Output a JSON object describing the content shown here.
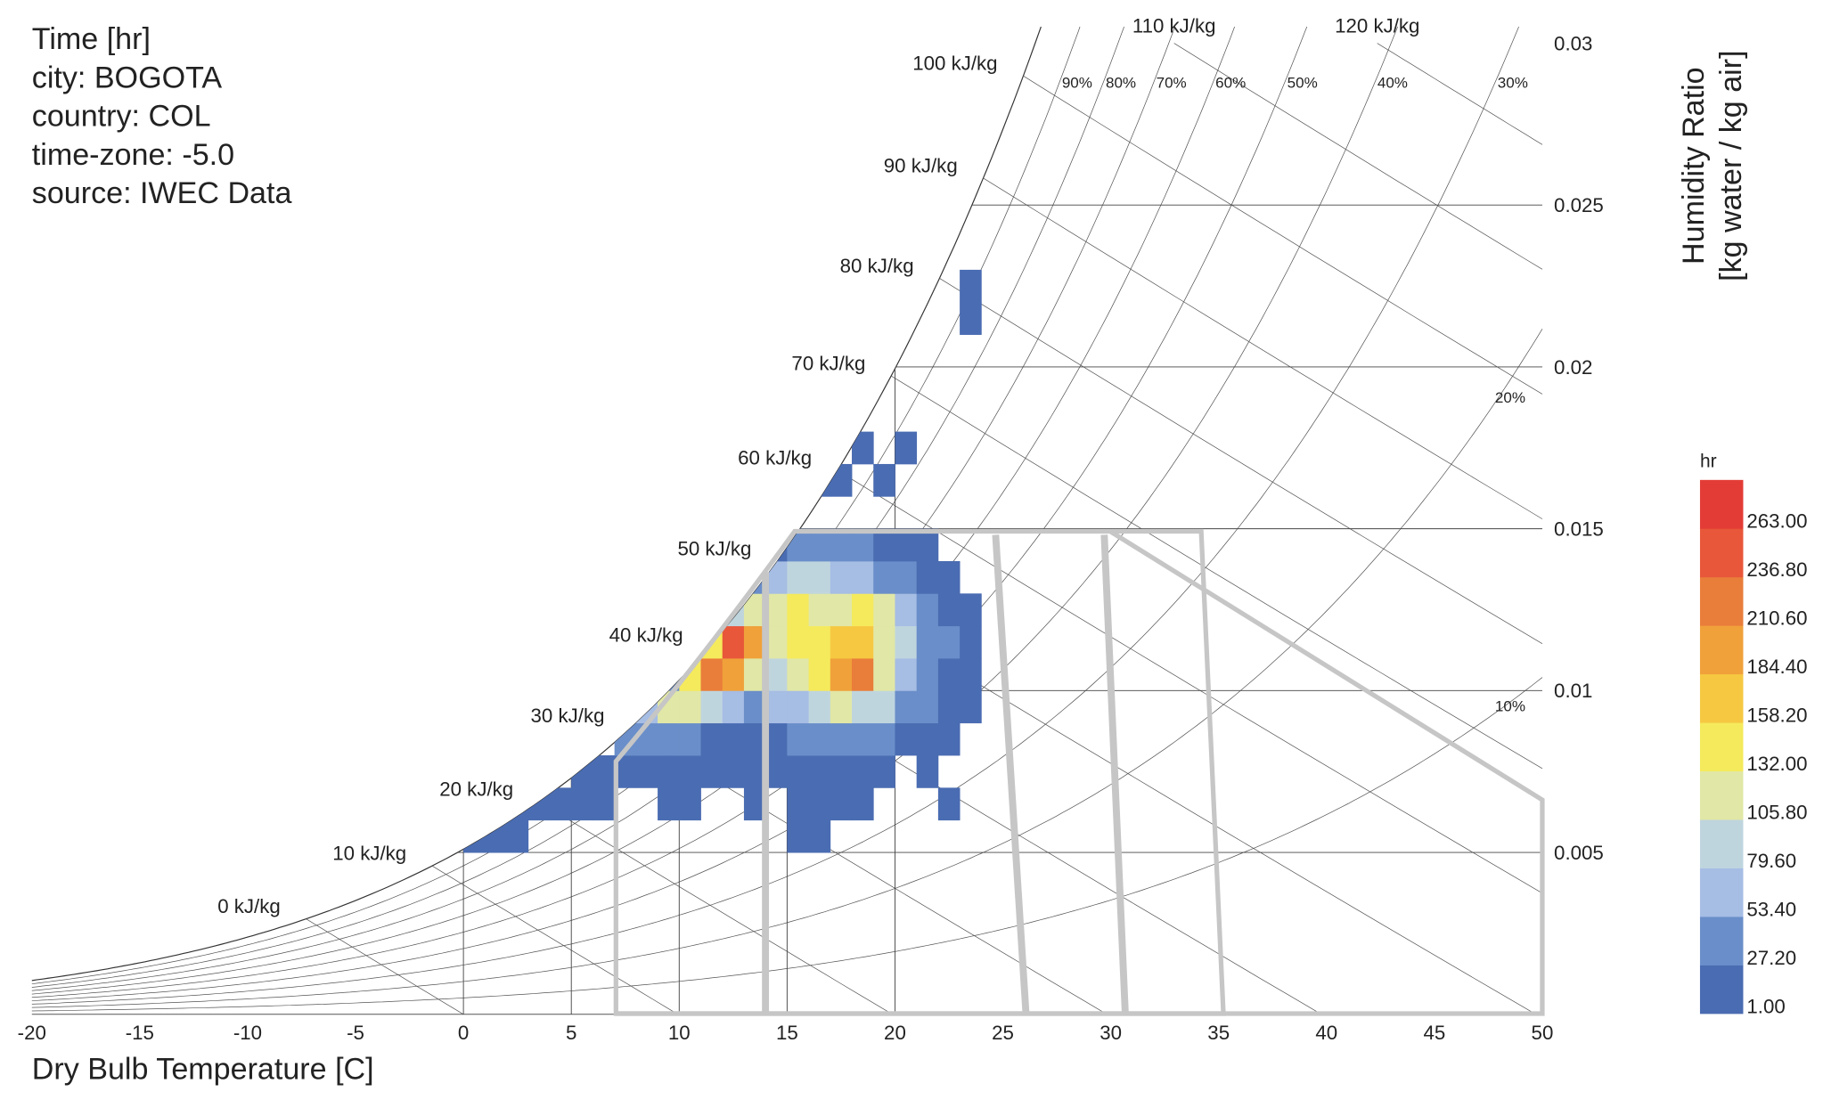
{
  "chart_data": {
    "type": "psychrometric",
    "info_lines": [
      "Time [hr]",
      "city: BOGOTA",
      "country: COL",
      "time-zone: -5.0",
      "source: IWEC Data"
    ],
    "x_label": "Dry Bulb Temperature [C]",
    "y_label": [
      "Humidity Ratio",
      "[kg water / kg air]"
    ],
    "xlim": [
      -20,
      50
    ],
    "xticks": [
      -20,
      -15,
      -10,
      -5,
      0,
      5,
      10,
      15,
      20,
      25,
      30,
      35,
      40,
      45,
      50
    ],
    "ylim": [
      0,
      0.03
    ],
    "yticks": [
      0.005,
      0.01,
      0.015,
      0.02,
      0.025,
      0.03
    ],
    "enthalpy_lines": [
      {
        "value": 0,
        "label": "0 kJ/kg"
      },
      {
        "value": 10,
        "label": "10 kJ/kg"
      },
      {
        "value": 20,
        "label": "20 kJ/kg"
      },
      {
        "value": 30,
        "label": "30 kJ/kg"
      },
      {
        "value": 40,
        "label": "40 kJ/kg"
      },
      {
        "value": 50,
        "label": "50 kJ/kg"
      },
      {
        "value": 60,
        "label": "60 kJ/kg"
      },
      {
        "value": 70,
        "label": "70 kJ/kg"
      },
      {
        "value": 80,
        "label": "80 kJ/kg"
      },
      {
        "value": 90,
        "label": "90 kJ/kg"
      },
      {
        "value": 100,
        "label": "100 kJ/kg"
      },
      {
        "value": 110,
        "label": "110 kJ/kg"
      },
      {
        "value": 120,
        "label": "120 kJ/kg"
      }
    ],
    "rh_lines": [
      {
        "value": 10,
        "label": "10%"
      },
      {
        "value": 20,
        "label": "20%"
      },
      {
        "value": 30,
        "label": "30%"
      },
      {
        "value": 40,
        "label": "40%"
      },
      {
        "value": 50,
        "label": "50%"
      },
      {
        "value": 60,
        "label": "60%"
      },
      {
        "value": 70,
        "label": "70%"
      },
      {
        "value": 80,
        "label": "80%"
      },
      {
        "value": 90,
        "label": "90%"
      },
      {
        "value": 100,
        "label": null
      }
    ],
    "legend": {
      "title": "hr",
      "ticks": [
        {
          "value": 1,
          "label": "1.00"
        },
        {
          "value": 27.2,
          "label": "27.20"
        },
        {
          "value": 53.4,
          "label": "53.40"
        },
        {
          "value": 79.6,
          "label": "79.60"
        },
        {
          "value": 105.8,
          "label": "105.80"
        },
        {
          "value": 132,
          "label": "132.00"
        },
        {
          "value": 158.2,
          "label": "158.20"
        },
        {
          "value": 184.4,
          "label": "184.40"
        },
        {
          "value": 210.6,
          "label": "210.60"
        },
        {
          "value": 236.8,
          "label": "236.80"
        },
        {
          "value": 263,
          "label": "263.00"
        }
      ],
      "colors": [
        "#4a6cb2",
        "#6a8ec9",
        "#a6bde4",
        "#bfd5de",
        "#e1e7a6",
        "#f5ea5c",
        "#f6c842",
        "#f0a13a",
        "#e97d3a",
        "#e8573a",
        "#e33c36"
      ]
    },
    "cells": [
      [
        0,
        0.005,
        2
      ],
      [
        1,
        0.005,
        3
      ],
      [
        2,
        0.005,
        2
      ],
      [
        15,
        0.005,
        1
      ],
      [
        16,
        0.005,
        1
      ],
      [
        2,
        0.006,
        5
      ],
      [
        3,
        0.006,
        8
      ],
      [
        4,
        0.006,
        6
      ],
      [
        5,
        0.006,
        5
      ],
      [
        6,
        0.006,
        3
      ],
      [
        9,
        0.006,
        2
      ],
      [
        10,
        0.006,
        3
      ],
      [
        13,
        0.006,
        2
      ],
      [
        15,
        0.006,
        4
      ],
      [
        16,
        0.006,
        3
      ],
      [
        17,
        0.006,
        3
      ],
      [
        18,
        0.006,
        2
      ],
      [
        22,
        0.006,
        1
      ],
      [
        5,
        0.007,
        10
      ],
      [
        6,
        0.007,
        15
      ],
      [
        7,
        0.007,
        10
      ],
      [
        8,
        0.007,
        15
      ],
      [
        9,
        0.007,
        10
      ],
      [
        10,
        0.007,
        5
      ],
      [
        11,
        0.007,
        5
      ],
      [
        12,
        0.007,
        3
      ],
      [
        13,
        0.007,
        8
      ],
      [
        14,
        0.007,
        10
      ],
      [
        15,
        0.007,
        15
      ],
      [
        16,
        0.007,
        18
      ],
      [
        17,
        0.007,
        12
      ],
      [
        18,
        0.007,
        8
      ],
      [
        19,
        0.007,
        5
      ],
      [
        21,
        0.007,
        2
      ],
      [
        7,
        0.008,
        30
      ],
      [
        8,
        0.008,
        50
      ],
      [
        9,
        0.008,
        40
      ],
      [
        10,
        0.008,
        30
      ],
      [
        11,
        0.008,
        25
      ],
      [
        12,
        0.008,
        20
      ],
      [
        13,
        0.008,
        15
      ],
      [
        14,
        0.008,
        20
      ],
      [
        15,
        0.008,
        30
      ],
      [
        16,
        0.008,
        40
      ],
      [
        17,
        0.008,
        45
      ],
      [
        18,
        0.008,
        40
      ],
      [
        19,
        0.008,
        30
      ],
      [
        20,
        0.008,
        20
      ],
      [
        21,
        0.008,
        10
      ],
      [
        22,
        0.008,
        3
      ],
      [
        8,
        0.009,
        60
      ],
      [
        9,
        0.009,
        120
      ],
      [
        10,
        0.009,
        110
      ],
      [
        11,
        0.009,
        90
      ],
      [
        12,
        0.009,
        70
      ],
      [
        13,
        0.009,
        50
      ],
      [
        14,
        0.009,
        60
      ],
      [
        15,
        0.009,
        70
      ],
      [
        16,
        0.009,
        90
      ],
      [
        17,
        0.009,
        110
      ],
      [
        18,
        0.009,
        100
      ],
      [
        19,
        0.009,
        80
      ],
      [
        20,
        0.009,
        50
      ],
      [
        21,
        0.009,
        30
      ],
      [
        22,
        0.009,
        15
      ],
      [
        23,
        0.009,
        5
      ],
      [
        9,
        0.01,
        40
      ],
      [
        10,
        0.01,
        150
      ],
      [
        11,
        0.01,
        220
      ],
      [
        12,
        0.01,
        200
      ],
      [
        13,
        0.01,
        130
      ],
      [
        14,
        0.01,
        100
      ],
      [
        15,
        0.01,
        120
      ],
      [
        16,
        0.01,
        150
      ],
      [
        17,
        0.01,
        200
      ],
      [
        18,
        0.01,
        215
      ],
      [
        19,
        0.01,
        130
      ],
      [
        20,
        0.01,
        70
      ],
      [
        21,
        0.01,
        40
      ],
      [
        22,
        0.01,
        20
      ],
      [
        23,
        0.01,
        8
      ],
      [
        10,
        0.011,
        60
      ],
      [
        11,
        0.011,
        150
      ],
      [
        12,
        0.011,
        250
      ],
      [
        13,
        0.011,
        200
      ],
      [
        14,
        0.011,
        120
      ],
      [
        15,
        0.011,
        150
      ],
      [
        16,
        0.011,
        140
      ],
      [
        17,
        0.011,
        160
      ],
      [
        18,
        0.011,
        180
      ],
      [
        19,
        0.011,
        120
      ],
      [
        20,
        0.011,
        80
      ],
      [
        21,
        0.011,
        50
      ],
      [
        22,
        0.011,
        30
      ],
      [
        23,
        0.011,
        10
      ],
      [
        12,
        0.012,
        80
      ],
      [
        13,
        0.012,
        110
      ],
      [
        14,
        0.012,
        120
      ],
      [
        15,
        0.012,
        140
      ],
      [
        16,
        0.012,
        130
      ],
      [
        17,
        0.012,
        120
      ],
      [
        18,
        0.012,
        140
      ],
      [
        19,
        0.012,
        110
      ],
      [
        20,
        0.012,
        70
      ],
      [
        21,
        0.012,
        40
      ],
      [
        22,
        0.012,
        20
      ],
      [
        23,
        0.012,
        5
      ],
      [
        13,
        0.013,
        40
      ],
      [
        14,
        0.013,
        60
      ],
      [
        15,
        0.013,
        80
      ],
      [
        16,
        0.013,
        90
      ],
      [
        17,
        0.013,
        70
      ],
      [
        18,
        0.013,
        60
      ],
      [
        19,
        0.013,
        50
      ],
      [
        20,
        0.013,
        30
      ],
      [
        21,
        0.013,
        15
      ],
      [
        22,
        0.013,
        5
      ],
      [
        14,
        0.014,
        20
      ],
      [
        15,
        0.014,
        30
      ],
      [
        16,
        0.014,
        40
      ],
      [
        17,
        0.014,
        35
      ],
      [
        18,
        0.014,
        30
      ],
      [
        19,
        0.014,
        25
      ],
      [
        20,
        0.014,
        15
      ],
      [
        21,
        0.014,
        8
      ],
      [
        16,
        0.016,
        8
      ],
      [
        17,
        0.016,
        4
      ],
      [
        19,
        0.016,
        3
      ],
      [
        18,
        0.017,
        2
      ],
      [
        20,
        0.017,
        2
      ],
      [
        23,
        0.021,
        1
      ],
      [
        23,
        0.022,
        1
      ]
    ]
  }
}
